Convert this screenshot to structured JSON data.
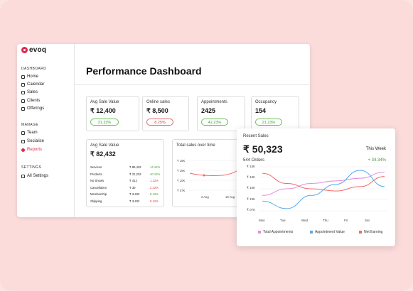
{
  "brand": {
    "name": "evoq",
    "color": "#e0294f"
  },
  "sidebar": {
    "sections": [
      {
        "title": "DASHBOARD",
        "items": [
          {
            "label": "Home",
            "icon": "home-icon",
            "active": false
          },
          {
            "label": "Calendar",
            "icon": "calendar-icon",
            "active": false
          },
          {
            "label": "Sales",
            "icon": "sales-icon",
            "active": false
          },
          {
            "label": "Clients",
            "icon": "clients-icon",
            "active": false
          },
          {
            "label": "Offerings",
            "icon": "offerings-icon",
            "active": false
          }
        ]
      },
      {
        "title": "MANAGE",
        "items": [
          {
            "label": "Team",
            "icon": "team-icon",
            "active": false
          },
          {
            "label": "Socialise",
            "icon": "socialise-icon",
            "active": false
          },
          {
            "label": "Reports",
            "icon": "reports-icon",
            "active": true
          }
        ]
      },
      {
        "title": "SETTINGS",
        "items": [
          {
            "label": "All Settings",
            "icon": "settings-icon",
            "active": false
          }
        ]
      }
    ]
  },
  "page_title": "Performance Dashboard",
  "kpis": [
    {
      "label": "Avg Sale Value",
      "value": "₹ 12,400",
      "change": "31.23%",
      "trend": "up"
    },
    {
      "label": "Online sales",
      "value": "₹ 8,500",
      "change": "8.25%",
      "trend": "down"
    },
    {
      "label": "Appointments",
      "value": "2425",
      "change": "42.23%",
      "trend": "up"
    },
    {
      "label": "Occupancy",
      "value": "154",
      "change": "21.23%",
      "trend": "up"
    }
  ],
  "avg_sale_card": {
    "label": "Avg Sale Value",
    "value": "₹ 82,432",
    "rows": [
      {
        "name": "Services",
        "amount": "₹ 86,432",
        "change": "14.12%",
        "trend": "up"
      },
      {
        "name": "Products",
        "amount": "₹ 21,232",
        "change": "40.12%",
        "trend": "up"
      },
      {
        "name": "No Shows",
        "amount": "₹ 412",
        "change": "1.12%",
        "trend": "down"
      },
      {
        "name": "Cancellation",
        "amount": "₹ 30",
        "change": "2.42%",
        "trend": "down"
      },
      {
        "name": "Membership",
        "amount": "₹ 3,432",
        "change": "8.12%",
        "trend": "up"
      },
      {
        "name": "Shipping",
        "amount": "₹ 3,432",
        "change": "8.12%",
        "trend": "down"
      }
    ]
  },
  "total_sales_card": {
    "title": "Total sales over time",
    "yticks": [
      "₹ 15K",
      "₹ 15K",
      "₹ 10K",
      "₹ 07K"
    ],
    "xticks": [
      "2 Aug",
      "16 Aug"
    ]
  },
  "recent_sales": {
    "label": "Recent Sales",
    "value": "₹ 50,323",
    "period": "This Week",
    "orders": "544 Orders",
    "growth": "+ 34.34%"
  },
  "chart_data": {
    "type": "line",
    "x": [
      "Mon",
      "Tue",
      "Wed",
      "Thu",
      "Fri",
      "Sat"
    ],
    "yticks": [
      "₹ 15K",
      "₹ 15K",
      "₹ 10K",
      "₹ 10K",
      "₹ 07K"
    ],
    "series": [
      {
        "name": "Total Appointments",
        "color": "#e98ae0",
        "values": [
          0.35,
          0.5,
          0.62,
          0.68,
          0.74,
          0.88
        ]
      },
      {
        "name": "Appointment Value",
        "color": "#5aa8ea",
        "values": [
          0.22,
          0.05,
          0.35,
          0.6,
          0.92,
          0.55
        ]
      },
      {
        "name": "Net Earning",
        "color": "#f06a6a",
        "values": [
          0.85,
          0.62,
          0.5,
          0.45,
          0.55,
          0.78
        ]
      }
    ]
  }
}
